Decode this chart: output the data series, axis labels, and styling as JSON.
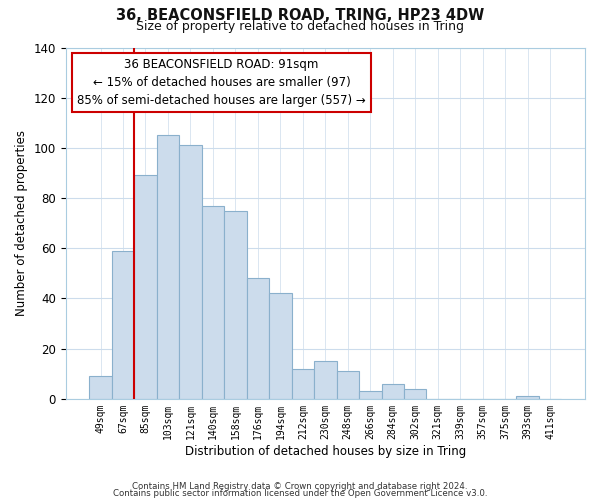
{
  "title": "36, BEACONSFIELD ROAD, TRING, HP23 4DW",
  "subtitle": "Size of property relative to detached houses in Tring",
  "xlabel": "Distribution of detached houses by size in Tring",
  "ylabel": "Number of detached properties",
  "categories": [
    "49sqm",
    "67sqm",
    "85sqm",
    "103sqm",
    "121sqm",
    "140sqm",
    "158sqm",
    "176sqm",
    "194sqm",
    "212sqm",
    "230sqm",
    "248sqm",
    "266sqm",
    "284sqm",
    "302sqm",
    "321sqm",
    "339sqm",
    "357sqm",
    "375sqm",
    "393sqm",
    "411sqm"
  ],
  "values": [
    9,
    59,
    89,
    105,
    101,
    77,
    75,
    48,
    42,
    12,
    15,
    11,
    3,
    6,
    4,
    0,
    0,
    0,
    0,
    1,
    0
  ],
  "bar_color": "#ccdcec",
  "bar_edge_color": "#8ab0cc",
  "vline_color": "#cc0000",
  "annotation_text": "36 BEACONSFIELD ROAD: 91sqm\n← 15% of detached houses are smaller (97)\n85% of semi-detached houses are larger (557) →",
  "annotation_box_color": "#ffffff",
  "annotation_box_edge": "#cc0000",
  "ylim": [
    0,
    140
  ],
  "yticks": [
    0,
    20,
    40,
    60,
    80,
    100,
    120,
    140
  ],
  "footer_line1": "Contains HM Land Registry data © Crown copyright and database right 2024.",
  "footer_line2": "Contains public sector information licensed under the Open Government Licence v3.0.",
  "background_color": "#ffffff",
  "grid_color": "#ccdcec",
  "spine_color": "#aacce0"
}
